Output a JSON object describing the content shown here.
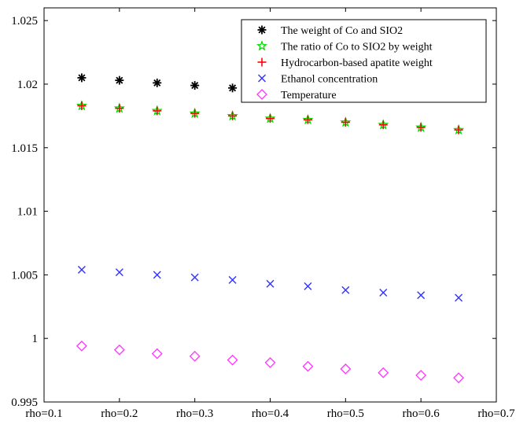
{
  "chart_data": {
    "type": "scatter",
    "title": "",
    "xlabel": "",
    "ylabel": "",
    "categories": [
      "rho=0.1",
      "rho=0.2",
      "rho=0.3",
      "rho=0.4",
      "rho=0.5",
      "rho=0.6",
      "rho=0.7"
    ],
    "xlim": [
      0.1,
      0.7
    ],
    "ylim": [
      0.995,
      1.026
    ],
    "y_ticks": [
      0.995,
      1,
      1.005,
      1.01,
      1.015,
      1.02,
      1.025
    ],
    "y_tick_labels": [
      "0.995",
      "1",
      "1.005",
      "1.01",
      "1.015",
      "1.02",
      "1.025"
    ],
    "x": [
      0.15,
      0.2,
      0.25,
      0.3,
      0.35,
      0.4,
      0.45,
      0.5,
      0.55,
      0.6,
      0.65
    ],
    "grid": false,
    "legend_position": "top-right",
    "series": [
      {
        "name": "The weight of Co and SIO2",
        "marker": "asterisk",
        "color": "#000000",
        "x": [
          0.15,
          0.2,
          0.25,
          0.3,
          0.35
        ],
        "values": [
          1.0205,
          1.0203,
          1.0201,
          1.0199,
          1.0197
        ]
      },
      {
        "name": "The ratio of Co to SIO2 by weight",
        "marker": "pentagram",
        "color": "#00dd00",
        "values": [
          1.0183,
          1.0181,
          1.0179,
          1.0177,
          1.0175,
          1.0173,
          1.0172,
          1.017,
          1.0168,
          1.0166,
          1.0164
        ]
      },
      {
        "name": "Hydrocarbon-based apatite weight",
        "marker": "plus",
        "color": "#ff0000",
        "values": [
          1.0183,
          1.0181,
          1.0179,
          1.0177,
          1.0175,
          1.0173,
          1.0172,
          1.017,
          1.0168,
          1.0166,
          1.0164
        ]
      },
      {
        "name": "Ethanol concentration",
        "marker": "x",
        "color": "#3333ff",
        "values": [
          1.0054,
          1.0052,
          1.005,
          1.0048,
          1.0046,
          1.0043,
          1.0041,
          1.0038,
          1.0036,
          1.0034,
          1.0032
        ]
      },
      {
        "name": "Temperature",
        "marker": "diamond",
        "color": "#ff33ff",
        "values": [
          0.9994,
          0.9991,
          0.9988,
          0.9986,
          0.9983,
          0.9981,
          0.9978,
          0.9976,
          0.9973,
          0.9971,
          0.9969
        ]
      }
    ]
  }
}
